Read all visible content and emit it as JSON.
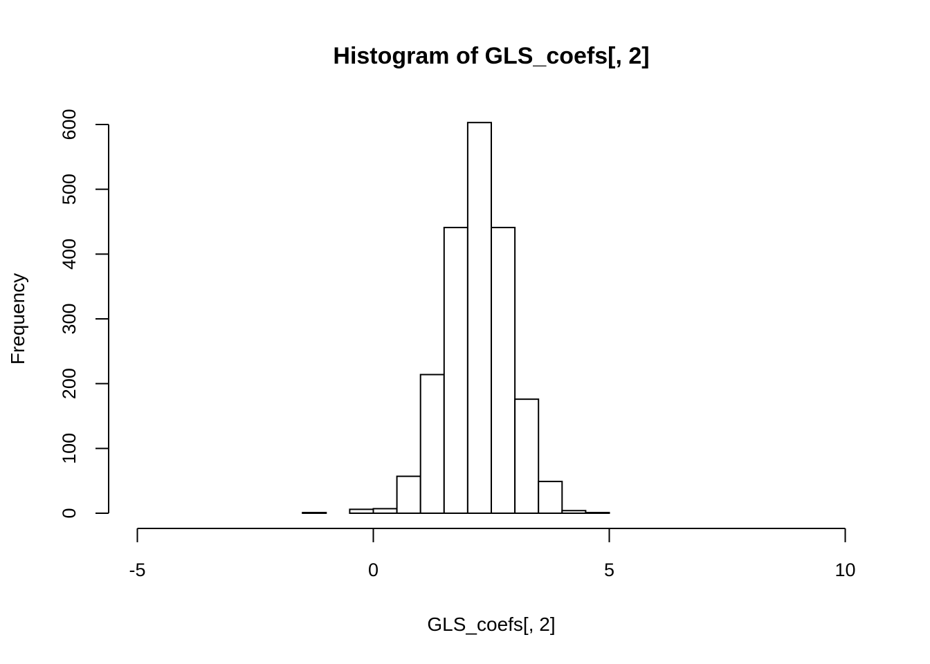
{
  "chart_data": {
    "type": "bar",
    "title": "Histogram of GLS_coefs[, 2]",
    "xlabel": "GLS_coefs[, 2]",
    "ylabel": "Frequency",
    "xlim": [
      -5,
      10
    ],
    "ylim": [
      0,
      600
    ],
    "x_ticks": [
      -5,
      0,
      5,
      10
    ],
    "y_ticks": [
      0,
      100,
      200,
      300,
      400,
      500,
      600
    ],
    "bin_width": 0.5,
    "bins": [
      {
        "start": -1.5,
        "end": -1.0,
        "count": 1
      },
      {
        "start": -1.0,
        "end": -0.5,
        "count": 0
      },
      {
        "start": -0.5,
        "end": 0.0,
        "count": 6
      },
      {
        "start": 0.0,
        "end": 0.5,
        "count": 7
      },
      {
        "start": 0.5,
        "end": 1.0,
        "count": 57
      },
      {
        "start": 1.0,
        "end": 1.5,
        "count": 214
      },
      {
        "start": 1.5,
        "end": 2.0,
        "count": 441
      },
      {
        "start": 2.0,
        "end": 2.5,
        "count": 603
      },
      {
        "start": 2.5,
        "end": 3.0,
        "count": 441
      },
      {
        "start": 3.0,
        "end": 3.5,
        "count": 176
      },
      {
        "start": 3.5,
        "end": 4.0,
        "count": 49
      },
      {
        "start": 4.0,
        "end": 4.5,
        "count": 4
      },
      {
        "start": 4.5,
        "end": 5.0,
        "count": 1
      }
    ],
    "grid": false,
    "legend": "none"
  }
}
